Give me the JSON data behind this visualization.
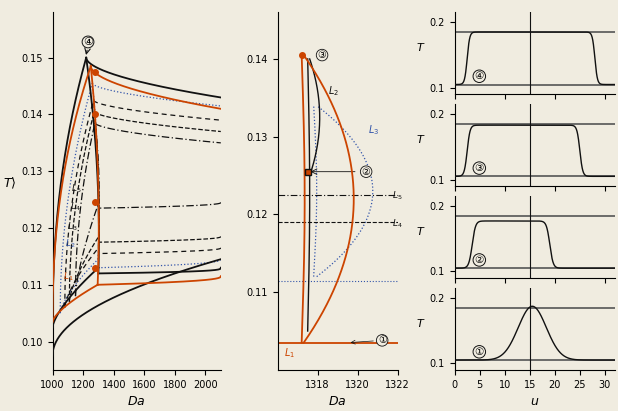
{
  "left_xlim": [
    1000,
    2100
  ],
  "left_ylim": [
    0.095,
    0.158
  ],
  "left_yticks": [
    0.1,
    0.11,
    0.12,
    0.13,
    0.14,
    0.15
  ],
  "left_xticks": [
    1000,
    1200,
    1400,
    1600,
    1800,
    2000
  ],
  "mid_xlim": [
    1316,
    1322
  ],
  "mid_ylim": [
    0.1,
    0.146
  ],
  "mid_yticks": [
    0.11,
    0.12,
    0.13,
    0.14
  ],
  "mid_xticks": [
    1318,
    1320,
    1322
  ],
  "right_xlim": [
    0,
    32
  ],
  "right_ylim": [
    0.09,
    0.215
  ],
  "right_yticks": [
    0.1,
    0.2
  ],
  "right_xticks": [
    0,
    5,
    10,
    15,
    20,
    25,
    30
  ],
  "bg_color": "#f0ece0",
  "orange_color": "#cc4400",
  "black_color": "#111111",
  "blue_color": "#3355aa",
  "gray_color": "#888888"
}
